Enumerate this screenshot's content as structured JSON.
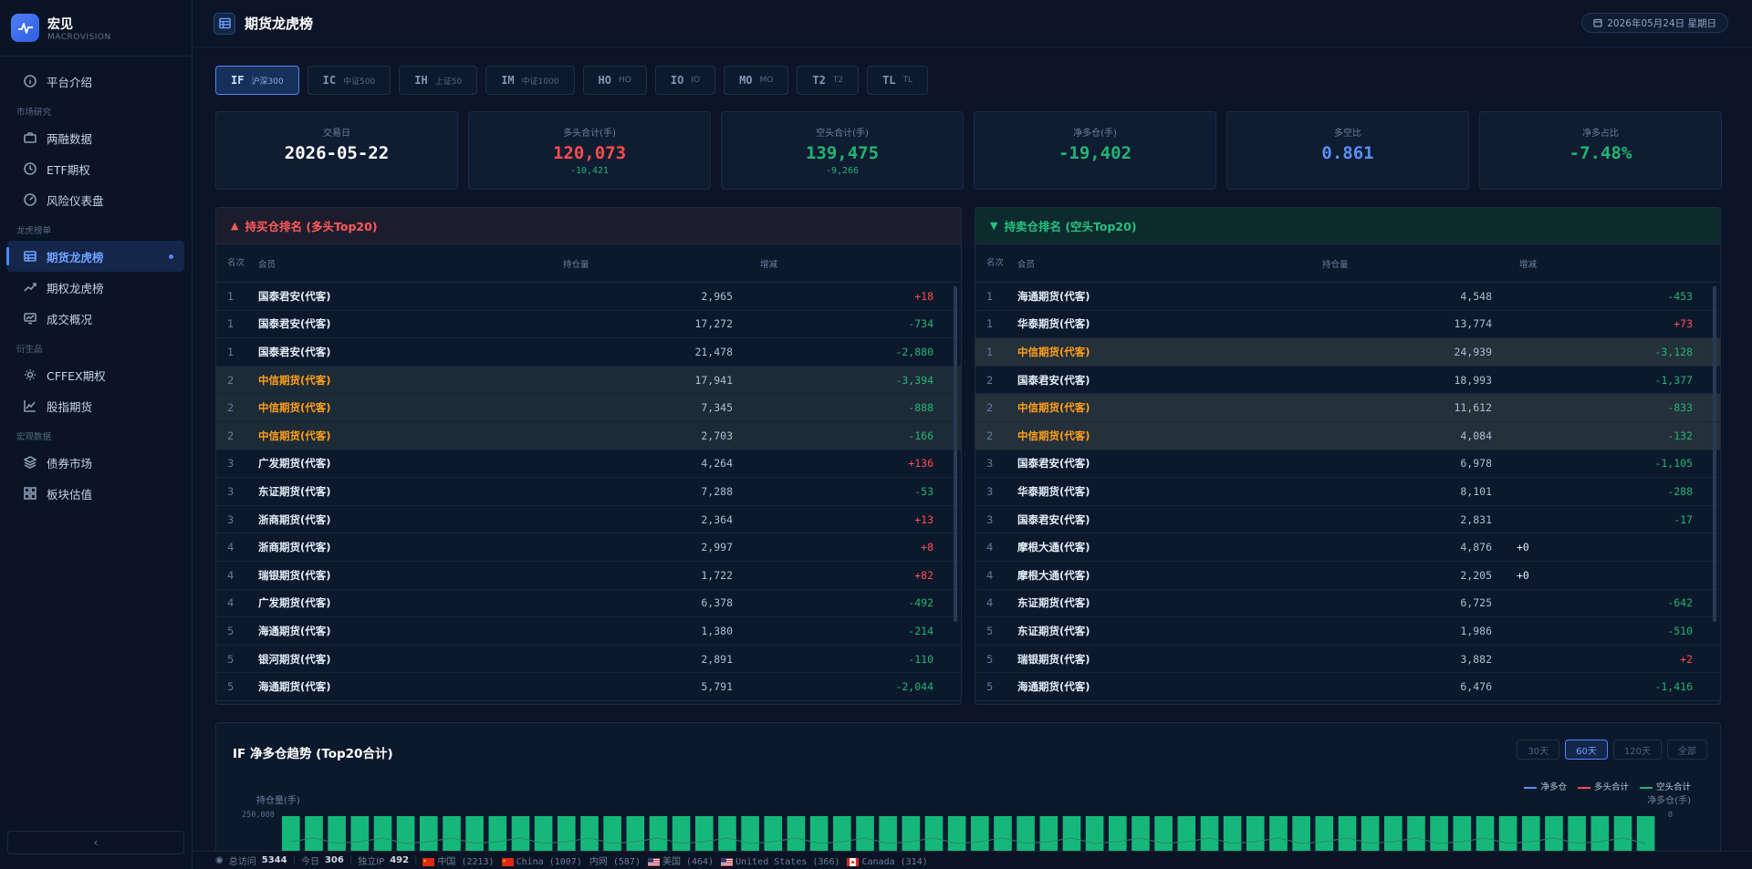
{
  "brand": {
    "name": "宏见",
    "sub": "MACROVISION"
  },
  "sidebar": {
    "top_item": "平台介绍",
    "sections": [
      {
        "title": "市场研究",
        "items": [
          "两融数据",
          "ETF期权",
          "风险仪表盘"
        ]
      },
      {
        "title": "龙虎榜单",
        "items": [
          "期货龙虎榜",
          "期权龙虎榜",
          "成交概况"
        ]
      },
      {
        "title": "衍生品",
        "items": [
          "CFFEX期权",
          "股指期货"
        ]
      },
      {
        "title": "宏观数据",
        "items": [
          "债券市场",
          "板块估值"
        ]
      }
    ],
    "active": "期货龙虎榜",
    "collapse_icon": "‹"
  },
  "header": {
    "title": "期货龙虎榜",
    "date": "2026年05月24日 星期日"
  },
  "tabs": [
    {
      "code": "IF",
      "name": "沪深300",
      "active": true
    },
    {
      "code": "IC",
      "name": "中证500"
    },
    {
      "code": "IH",
      "name": "上证50"
    },
    {
      "code": "IM",
      "name": "中证1000"
    },
    {
      "code": "HO",
      "name": "HO"
    },
    {
      "code": "IO",
      "name": "IO"
    },
    {
      "code": "MO",
      "name": "MO"
    },
    {
      "code": "T2",
      "name": "T2"
    },
    {
      "code": "TL",
      "name": "TL"
    }
  ],
  "stats": [
    {
      "label": "交易日",
      "value": "2026-05-22",
      "sub": "",
      "color": "#ffffff"
    },
    {
      "label": "多头合计(手)",
      "value": "120,073",
      "sub": "-10,421",
      "color": "#ff4d4f",
      "sub_color": "#22b573"
    },
    {
      "label": "空头合计(手)",
      "value": "139,475",
      "sub": "-9,266",
      "color": "#22b573",
      "sub_color": "#22b573"
    },
    {
      "label": "净多仓(手)",
      "value": "-19,402",
      "sub": "",
      "color": "#22b573"
    },
    {
      "label": "多空比",
      "value": "0.861",
      "sub": "",
      "color": "#5b8ff9"
    },
    {
      "label": "净多占比",
      "value": "-7.48%",
      "sub": "",
      "color": "#22b573"
    }
  ],
  "long_table": {
    "title": "持买仓排名 (多头Top20)",
    "headers": {
      "rank": "名次",
      "member": "会员",
      "position": "持仓量",
      "change": "增减"
    },
    "rows": [
      {
        "rank": "1",
        "member": "国泰君安(代客)",
        "position": "2,965",
        "change": "+18"
      },
      {
        "rank": "1",
        "member": "国泰君安(代客)",
        "position": "17,272",
        "change": "-734"
      },
      {
        "rank": "1",
        "member": "国泰君安(代客)",
        "position": "21,478",
        "change": "-2,880"
      },
      {
        "rank": "2",
        "member": "中信期货(代客)",
        "position": "17,941",
        "change": "-3,394",
        "hl": true
      },
      {
        "rank": "2",
        "member": "中信期货(代客)",
        "position": "7,345",
        "change": "-888",
        "hl": true
      },
      {
        "rank": "2",
        "member": "中信期货(代客)",
        "position": "2,703",
        "change": "-166",
        "hl": true
      },
      {
        "rank": "3",
        "member": "广发期货(代客)",
        "position": "4,264",
        "change": "+136"
      },
      {
        "rank": "3",
        "member": "东证期货(代客)",
        "position": "7,288",
        "change": "-53"
      },
      {
        "rank": "3",
        "member": "浙商期货(代客)",
        "position": "2,364",
        "change": "+13"
      },
      {
        "rank": "4",
        "member": "浙商期货(代客)",
        "position": "2,997",
        "change": "+8"
      },
      {
        "rank": "4",
        "member": "瑞银期货(代客)",
        "position": "1,722",
        "change": "+82"
      },
      {
        "rank": "4",
        "member": "广发期货(代客)",
        "position": "6,378",
        "change": "-492"
      },
      {
        "rank": "5",
        "member": "海通期货(代客)",
        "position": "1,380",
        "change": "-214"
      },
      {
        "rank": "5",
        "member": "银河期货(代客)",
        "position": "2,891",
        "change": "-110"
      },
      {
        "rank": "5",
        "member": "海通期货(代客)",
        "position": "5,791",
        "change": "-2,044"
      }
    ]
  },
  "short_table": {
    "title": "持卖仓排名 (空头Top20)",
    "headers": {
      "rank": "名次",
      "member": "会员",
      "position": "持仓量",
      "change": "增减"
    },
    "rows": [
      {
        "rank": "1",
        "member": "海通期货(代客)",
        "position": "4,548",
        "change": "-453"
      },
      {
        "rank": "1",
        "member": "华泰期货(代客)",
        "position": "13,774",
        "change": "+73"
      },
      {
        "rank": "1",
        "member": "中信期货(代客)",
        "position": "24,939",
        "change": "-3,128",
        "hl": true
      },
      {
        "rank": "2",
        "member": "国泰君安(代客)",
        "position": "18,993",
        "change": "-1,377"
      },
      {
        "rank": "2",
        "member": "中信期货(代客)",
        "position": "11,612",
        "change": "-833",
        "hl": true
      },
      {
        "rank": "2",
        "member": "中信期货(代客)",
        "position": "4,084",
        "change": "-132",
        "hl": true
      },
      {
        "rank": "3",
        "member": "国泰君安(代客)",
        "position": "6,978",
        "change": "-1,105"
      },
      {
        "rank": "3",
        "member": "华泰期货(代客)",
        "position": "8,101",
        "change": "-288"
      },
      {
        "rank": "3",
        "member": "国泰君安(代客)",
        "position": "2,831",
        "change": "-17"
      },
      {
        "rank": "4",
        "member": "摩根大通(代客)",
        "position": "4,876",
        "change": "+0"
      },
      {
        "rank": "4",
        "member": "摩根大通(代客)",
        "position": "2,205",
        "change": "+0"
      },
      {
        "rank": "4",
        "member": "东证期货(代客)",
        "position": "6,725",
        "change": "-642"
      },
      {
        "rank": "5",
        "member": "东证期货(代客)",
        "position": "1,986",
        "change": "-510"
      },
      {
        "rank": "5",
        "member": "瑞银期货(代客)",
        "position": "3,882",
        "change": "+2"
      },
      {
        "rank": "5",
        "member": "海通期货(代客)",
        "position": "6,476",
        "change": "-1,416"
      }
    ]
  },
  "trend": {
    "title": "IF 净多仓趋势 (Top20合计)",
    "ranges": [
      "30天",
      "60天",
      "120天",
      "全部"
    ],
    "active_range": "60天",
    "legend": [
      {
        "name": "净多仓",
        "color": "#5b8ff9"
      },
      {
        "name": "多头合计",
        "color": "#ff4d4f"
      },
      {
        "name": "空头合计",
        "color": "#22b573"
      }
    ],
    "y_left_label": "持仓量(手)",
    "y_right_label": "净多仓(手)",
    "y_left_tick": "250,000",
    "y_right_tick": "0",
    "bar_count": 60,
    "bar_color": "#16b87a"
  },
  "footer": {
    "total_label": "总访问",
    "total": "5344",
    "today_label": "今日",
    "today": "306",
    "ip_label": "独立IP",
    "ip": "492",
    "countries": [
      {
        "text": "中国 (2213)",
        "flag": "cn"
      },
      {
        "text": "China (1007)",
        "flag": "cn"
      },
      {
        "text": "内网 (587)",
        "flag": ""
      },
      {
        "text": "美国 (464)",
        "flag": "us"
      },
      {
        "text": "United States (366)",
        "flag": "us"
      },
      {
        "text": "Canada (314)",
        "flag": "ca"
      }
    ]
  }
}
